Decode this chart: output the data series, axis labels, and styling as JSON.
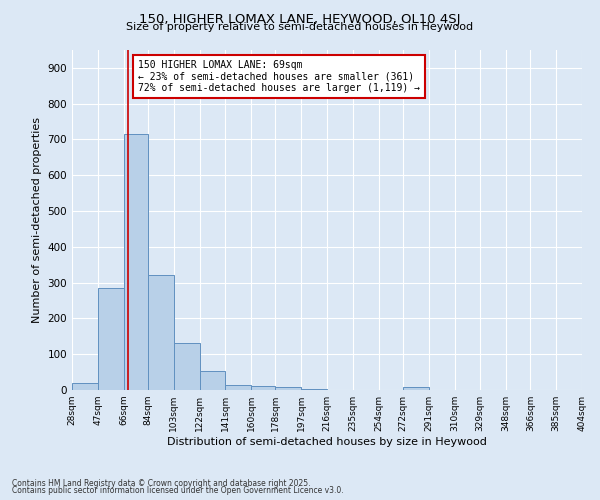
{
  "title1": "150, HIGHER LOMAX LANE, HEYWOOD, OL10 4SJ",
  "title2": "Size of property relative to semi-detached houses in Heywood",
  "xlabel": "Distribution of semi-detached houses by size in Heywood",
  "ylabel": "Number of semi-detached properties",
  "bins": [
    28,
    47,
    66,
    84,
    103,
    122,
    141,
    160,
    178,
    197,
    216,
    235,
    254,
    272,
    291,
    310,
    329,
    348,
    366,
    385,
    404
  ],
  "counts": [
    20,
    285,
    715,
    320,
    130,
    52,
    15,
    12,
    8,
    2,
    0,
    0,
    0,
    8,
    0,
    0,
    0,
    0,
    0,
    0
  ],
  "bar_color": "#b8d0e8",
  "bar_edgecolor": "#6090c0",
  "property_size": 69,
  "vline_color": "#cc0000",
  "annotation_title": "150 HIGHER LOMAX LANE: 69sqm",
  "annotation_line1": "← 23% of semi-detached houses are smaller (361)",
  "annotation_line2": "72% of semi-detached houses are larger (1,119) →",
  "annotation_box_edgecolor": "#cc0000",
  "annotation_box_facecolor": "#ffffff",
  "ylim": [
    0,
    950
  ],
  "yticks": [
    0,
    100,
    200,
    300,
    400,
    500,
    600,
    700,
    800,
    900
  ],
  "bg_color": "#dce8f5",
  "footnote1": "Contains HM Land Registry data © Crown copyright and database right 2025.",
  "footnote2": "Contains public sector information licensed under the Open Government Licence v3.0."
}
